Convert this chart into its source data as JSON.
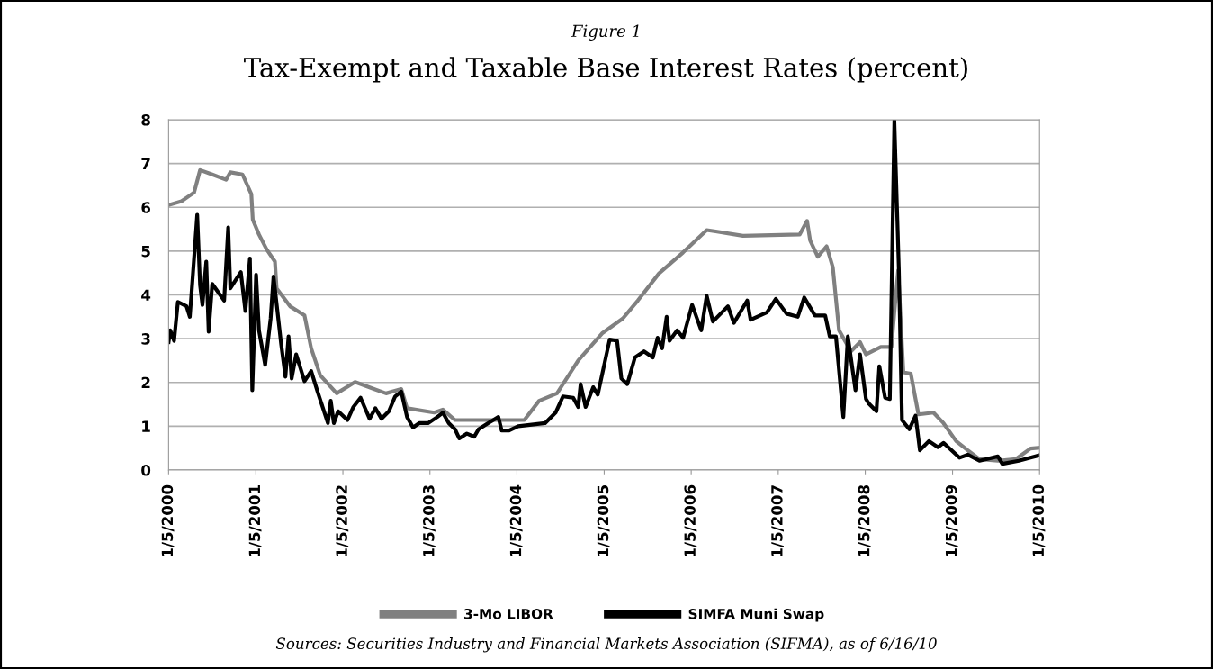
{
  "chart_data": {
    "type": "line",
    "title": "Tax-Exempt and Taxable Base Interest Rates (percent)",
    "subtitle": "Figure 1",
    "annotations": [
      "Sources: Securities Industry and Financial Markets Association (SIFMA), as of 6/16/10"
    ],
    "xlim": [
      "2000-01-05",
      "2010-01-05"
    ],
    "xticks": [
      {
        "value": "2000-01-05",
        "label": "1/5/2000"
      },
      {
        "value": "2001-01-05",
        "label": "1/5/2001"
      },
      {
        "value": "2002-01-05",
        "label": "1/5/2002"
      },
      {
        "value": "2003-01-05",
        "label": "1/5/2003"
      },
      {
        "value": "2004-01-05",
        "label": "1/5/2004"
      },
      {
        "value": "2005-01-05",
        "label": "1/5/2005"
      },
      {
        "value": "2006-01-05",
        "label": "1/5/2006"
      },
      {
        "value": "2007-01-05",
        "label": "1/5/2007"
      },
      {
        "value": "2008-01-05",
        "label": "1/5/2008"
      },
      {
        "value": "2009-01-05",
        "label": "1/5/2009"
      },
      {
        "value": "2010-01-05",
        "label": "1/5/2010"
      }
    ],
    "ylim": [
      0,
      8
    ],
    "yticks": [
      0,
      1,
      2,
      3,
      4,
      5,
      6,
      7,
      8
    ],
    "grid": "y",
    "legend": "bottom",
    "marker": "none",
    "line_style": "solid",
    "series": [
      {
        "name": "3-Mo LIBOR",
        "color": "#808080",
        "x": [
          "2000-01-05",
          "2000-02-28",
          "2000-04-03",
          "2000-04-21",
          "2000-05-16",
          "2000-07-06",
          "2000-09-02",
          "2000-09-20",
          "2000-11-10",
          "2000-12-17",
          "2000-12-23",
          "2001-01-18",
          "2001-02-19",
          "2001-03-26",
          "2001-04-02",
          "2001-05-28",
          "2001-07-28",
          "2001-08-25",
          "2001-10-02",
          "2001-12-10",
          "2002-02-25",
          "2002-05-15",
          "2002-07-05",
          "2002-09-07",
          "2002-10-01",
          "2003-01-23",
          "2003-02-28",
          "2003-04-20",
          "2003-12-15",
          "2004-02-05",
          "2004-04-07",
          "2004-06-21",
          "2004-09-18",
          "2004-12-27",
          "2005-03-24",
          "2005-05-26",
          "2005-08-23",
          "2005-12-02",
          "2006-03-11",
          "2006-04-18",
          "2006-08-10",
          "2007-04-05",
          "2007-05-06",
          "2007-05-19",
          "2007-06-20",
          "2007-07-27",
          "2007-08-22",
          "2007-09-17",
          "2007-11-06",
          "2007-12-14",
          "2008-01-08",
          "2008-03-10",
          "2008-04-24",
          "2008-05-06",
          "2008-05-22",
          "2008-06-13",
          "2008-07-14",
          "2008-08-15",
          "2008-10-17",
          "2008-11-28",
          "2009-01-20",
          "2009-03-10",
          "2009-04-28",
          "2009-07-14",
          "2009-09-28",
          "2009-11-28",
          "2010-01-05"
        ],
        "values": [
          6.05,
          6.14,
          6.27,
          6.34,
          6.85,
          6.75,
          6.63,
          6.8,
          6.75,
          6.3,
          5.72,
          5.38,
          5.04,
          4.76,
          4.15,
          3.74,
          3.53,
          2.78,
          2.16,
          1.75,
          2.01,
          1.85,
          1.75,
          1.85,
          1.41,
          1.31,
          1.38,
          1.14,
          1.14,
          1.14,
          1.58,
          1.75,
          2.5,
          3.12,
          3.46,
          3.87,
          4.49,
          4.97,
          5.48,
          5.45,
          5.35,
          5.38,
          5.69,
          5.24,
          4.87,
          5.11,
          4.63,
          3.19,
          2.71,
          2.92,
          2.64,
          2.81,
          2.81,
          3.6,
          4.56,
          2.23,
          2.2,
          1.27,
          1.31,
          1.07,
          0.66,
          0.45,
          0.25,
          0.21,
          0.25,
          0.49,
          0.51
        ]
      },
      {
        "name": "SIMFA Muni Swap",
        "color": "#000000",
        "x": [
          "2000-01-05",
          "2000-01-12",
          "2000-01-28",
          "2000-02-13",
          "2000-03-20",
          "2000-04-03",
          "2000-05-04",
          "2000-05-16",
          "2000-05-26",
          "2000-06-11",
          "2000-06-21",
          "2000-07-06",
          "2000-08-25",
          "2000-09-11",
          "2000-09-20",
          "2000-11-03",
          "2000-11-22",
          "2000-12-11",
          "2000-12-21",
          "2001-01-06",
          "2001-01-18",
          "2001-02-13",
          "2001-03-08",
          "2001-03-20",
          "2001-04-21",
          "2001-05-09",
          "2001-05-22",
          "2001-06-04",
          "2001-06-23",
          "2001-07-28",
          "2001-08-25",
          "2001-09-20",
          "2001-11-03",
          "2001-11-15",
          "2001-11-28",
          "2001-12-16",
          "2002-01-24",
          "2002-02-18",
          "2002-03-20",
          "2002-04-27",
          "2002-05-21",
          "2002-06-16",
          "2002-07-17",
          "2002-08-12",
          "2002-09-07",
          "2002-10-01",
          "2002-10-26",
          "2002-11-21",
          "2002-12-28",
          "2003-02-05",
          "2003-02-28",
          "2003-03-25",
          "2003-04-20",
          "2003-05-08",
          "2003-06-09",
          "2003-07-10",
          "2003-07-28",
          "2003-09-06",
          "2003-10-19",
          "2003-11-02",
          "2003-12-03",
          "2004-01-10",
          "2004-02-28",
          "2004-05-02",
          "2004-06-15",
          "2004-07-16",
          "2004-08-28",
          "2004-09-18",
          "2004-09-28",
          "2004-10-19",
          "2004-11-20",
          "2004-12-09",
          "2005-01-28",
          "2005-02-28",
          "2005-03-18",
          "2005-04-12",
          "2005-05-14",
          "2005-06-21",
          "2005-07-28",
          "2005-08-17",
          "2005-09-05",
          "2005-09-24",
          "2005-10-06",
          "2005-11-07",
          "2005-12-02",
          "2006-01-09",
          "2006-02-16",
          "2006-03-11",
          "2006-04-06",
          "2006-06-08",
          "2006-07-03",
          "2006-08-28",
          "2006-09-11",
          "2006-11-19",
          "2006-12-26",
          "2007-02-09",
          "2007-03-28",
          "2007-04-24",
          "2007-06-08",
          "2007-07-21",
          "2007-08-09",
          "2007-09-04",
          "2007-10-05",
          "2007-10-24",
          "2007-11-25",
          "2007-12-14",
          "2008-01-08",
          "2008-01-21",
          "2008-02-21",
          "2008-03-04",
          "2008-03-28",
          "2008-04-17",
          "2008-05-06",
          "2008-05-25",
          "2008-06-07",
          "2008-07-08",
          "2008-08-03",
          "2008-08-21",
          "2008-09-28",
          "2008-11-05",
          "2008-11-28",
          "2009-02-03",
          "2009-03-10",
          "2009-04-28",
          "2009-07-14",
          "2009-08-02",
          "2009-10-10",
          "2009-11-28",
          "2010-01-01"
        ],
        "values": [
          2.92,
          3.19,
          2.95,
          3.84,
          3.74,
          3.5,
          5.83,
          4.22,
          3.77,
          4.76,
          3.16,
          4.25,
          3.87,
          5.54,
          4.15,
          4.52,
          3.63,
          4.83,
          1.82,
          4.46,
          3.19,
          2.4,
          3.46,
          4.42,
          2.88,
          2.13,
          3.05,
          2.09,
          2.64,
          2.03,
          2.26,
          1.8,
          1.07,
          1.58,
          1.07,
          1.34,
          1.14,
          1.44,
          1.65,
          1.17,
          1.41,
          1.17,
          1.34,
          1.68,
          1.79,
          1.21,
          0.97,
          1.07,
          1.07,
          1.21,
          1.31,
          1.07,
          0.93,
          0.72,
          0.83,
          0.76,
          0.93,
          1.07,
          1.21,
          0.9,
          0.9,
          1.0,
          1.03,
          1.07,
          1.31,
          1.68,
          1.65,
          1.44,
          1.96,
          1.44,
          1.89,
          1.72,
          2.98,
          2.95,
          2.09,
          1.96,
          2.57,
          2.71,
          2.57,
          3.02,
          2.78,
          3.5,
          2.95,
          3.19,
          3.02,
          3.77,
          3.19,
          3.98,
          3.39,
          3.74,
          3.36,
          3.87,
          3.43,
          3.6,
          3.91,
          3.57,
          3.5,
          3.94,
          3.53,
          3.53,
          3.05,
          3.05,
          1.21,
          3.05,
          1.82,
          2.64,
          1.62,
          1.51,
          1.34,
          2.37,
          1.65,
          1.62,
          7.98,
          4.56,
          1.14,
          0.93,
          1.24,
          0.45,
          0.66,
          0.52,
          0.62,
          0.28,
          0.35,
          0.21,
          0.31,
          0.14,
          0.21,
          0.28,
          0.33
        ]
      }
    ]
  }
}
